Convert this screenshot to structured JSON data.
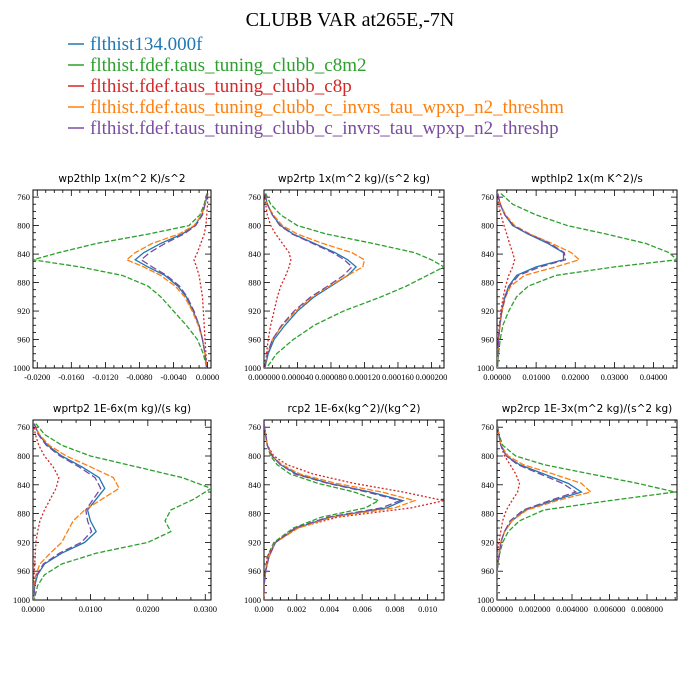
{
  "figure": {
    "title": "CLUBB VAR at265E,-7N"
  },
  "legend": [
    {
      "label": "flthist134.000f",
      "color": "#1f77b4"
    },
    {
      "label": "flthist.fdef.taus_tuning_clubb_c8m2",
      "color": "#2ca02c"
    },
    {
      "label": "flthist.fdef.taus_tuning_clubb_c8p",
      "color": "#d62728"
    },
    {
      "label": "flthist.fdef.taus_tuning_clubb_c_invrs_tau_wpxp_n2_threshm",
      "color": "#ff7f0e"
    },
    {
      "label": "flthist.fdef.taus_tuning_clubb_c_invrs_tau_wpxp_n2_threshp",
      "color": "#7a4ca0"
    }
  ],
  "chart_data": [
    {
      "type": "line",
      "title": "wp2thlp   1x(m^2 K)/s^2",
      "xlim": [
        -0.0205,
        0.0004
      ],
      "ylim": [
        1000,
        750
      ],
      "yticks": [
        760,
        800,
        840,
        880,
        920,
        960,
        1000
      ],
      "xticks": [
        -0.02,
        -0.016,
        -0.012,
        -0.008,
        -0.004,
        0
      ],
      "xtick_labels": [
        "-0.0200",
        "-0.0160",
        "-0.0120",
        "-0.0080",
        "-0.0040",
        "0.0000"
      ],
      "y": [
        755,
        770,
        785,
        800,
        812,
        825,
        838,
        848,
        858,
        870,
        885,
        900,
        920,
        940,
        960,
        980,
        1000
      ],
      "series": [
        {
          "values": [
            0.0,
            -0.0003,
            -0.0007,
            -0.0015,
            -0.003,
            -0.0055,
            -0.0075,
            -0.0085,
            -0.007,
            -0.005,
            -0.0035,
            -0.0025,
            -0.0017,
            -0.001,
            -0.0006,
            -0.0003,
            -0.0001
          ],
          "color": "#1f77b4",
          "dash": "solid"
        },
        {
          "values": [
            -0.0001,
            -0.0004,
            -0.0009,
            -0.0022,
            -0.007,
            -0.013,
            -0.0175,
            -0.0205,
            -0.015,
            -0.01,
            -0.007,
            -0.0055,
            -0.004,
            -0.0025,
            -0.0012,
            -0.0005,
            -0.0001
          ],
          "color": "#2ca02c",
          "dash": "5,2"
        },
        {
          "values": [
            0.0,
            0.0,
            -0.0001,
            -0.0002,
            -0.0004,
            -0.0008,
            -0.0012,
            -0.0016,
            -0.0013,
            -0.001,
            -0.0008,
            -0.0006,
            -0.0005,
            -0.0004,
            -0.0003,
            -0.0002,
            -0.0001
          ],
          "color": "#d62728",
          "dash": "2,2"
        },
        {
          "values": [
            0.0,
            -0.0003,
            -0.0007,
            -0.0016,
            -0.0034,
            -0.0065,
            -0.0085,
            -0.0095,
            -0.0075,
            -0.0055,
            -0.0038,
            -0.0027,
            -0.0018,
            -0.0011,
            -0.0006,
            -0.0003,
            -0.0001
          ],
          "color": "#ff7f0e",
          "dash": "6,2"
        },
        {
          "values": [
            0.0,
            -0.0003,
            -0.0006,
            -0.0014,
            -0.0028,
            -0.005,
            -0.0068,
            -0.0078,
            -0.0065,
            -0.0048,
            -0.0033,
            -0.0024,
            -0.0016,
            -0.001,
            -0.0006,
            -0.0003,
            -0.0001
          ],
          "color": "#7a4ca0",
          "dash": "7,3"
        }
      ]
    },
    {
      "type": "line",
      "title": "wp2rtp   1x(m^2 kg)/(s^2 kg)",
      "xlim": [
        0,
        0.000215
      ],
      "ylim": [
        1000,
        750
      ],
      "yticks": [
        760,
        800,
        840,
        880,
        920,
        960,
        1000
      ],
      "xticks": [
        0,
        4e-05,
        8e-05,
        0.00012,
        0.00016,
        0.0002
      ],
      "xtick_labels": [
        "0.000000",
        "0.000040",
        "0.000080",
        "0.000120",
        "0.000160",
        "0.000200"
      ],
      "y": [
        755,
        770,
        785,
        800,
        812,
        825,
        838,
        848,
        858,
        870,
        885,
        900,
        920,
        940,
        960,
        980,
        1000
      ],
      "series": [
        {
          "values": [
            1e-06,
            4e-06,
            1e-05,
            2e-05,
            3.5e-05,
            6e-05,
            8.5e-05,
            0.0001,
            0.00011,
            0.0001,
            8e-05,
            6e-05,
            4e-05,
            2.5e-05,
            1.2e-05,
            5e-06,
            1e-06
          ],
          "color": "#1f77b4",
          "dash": "solid"
        },
        {
          "values": [
            2e-06,
            8e-06,
            2e-05,
            4e-05,
            7.5e-05,
            0.00013,
            0.00018,
            0.0002,
            0.000215,
            0.000195,
            0.00017,
            0.00014,
            9.5e-05,
            6e-05,
            3.5e-05,
            1.5e-05,
            3e-06
          ],
          "color": "#2ca02c",
          "dash": "5,2"
        },
        {
          "values": [
            1e-06,
            2e-06,
            4e-06,
            8e-06,
            1.4e-05,
            2.2e-05,
            3e-05,
            3.2e-05,
            3e-05,
            2.6e-05,
            2e-05,
            1.6e-05,
            1.2e-05,
            8e-06,
            5e-06,
            3e-06,
            1e-06
          ],
          "color": "#d62728",
          "dash": "2,2"
        },
        {
          "values": [
            1e-06,
            4e-06,
            1.1e-05,
            2.2e-05,
            4e-05,
            7e-05,
            0.000105,
            0.00012,
            0.000118,
            0.0001,
            7.8e-05,
            5.8e-05,
            3.8e-05,
            2.2e-05,
            1e-05,
            4e-06,
            1e-06
          ],
          "color": "#ff7f0e",
          "dash": "6,2"
        },
        {
          "values": [
            1e-06,
            4e-06,
            1e-05,
            1.9e-05,
            3.4e-05,
            5.8e-05,
            8.2e-05,
            9.6e-05,
            0.000105,
            9.5e-05,
            7.6e-05,
            5.6e-05,
            3.6e-05,
            2.1e-05,
            1e-05,
            4e-06,
            1e-06
          ],
          "color": "#7a4ca0",
          "dash": "7,3"
        }
      ]
    },
    {
      "type": "line",
      "title": "wpthlp2   1x(m K^2)/s",
      "xlim": [
        0,
        0.046
      ],
      "ylim": [
        1000,
        750
      ],
      "yticks": [
        760,
        800,
        840,
        880,
        920,
        960,
        1000
      ],
      "xticks": [
        0,
        0.01,
        0.02,
        0.03,
        0.04
      ],
      "xtick_labels": [
        "0.00000",
        "0.01000",
        "0.02000",
        "0.03000",
        "0.04000"
      ],
      "y": [
        755,
        770,
        785,
        800,
        812,
        825,
        838,
        848,
        858,
        870,
        885,
        900,
        920,
        940,
        960,
        980,
        1000
      ],
      "series": [
        {
          "values": [
            0.0002,
            0.0008,
            0.002,
            0.004,
            0.008,
            0.013,
            0.017,
            0.017,
            0.01,
            0.005,
            0.003,
            0.002,
            0.0012,
            0.0007,
            0.0004,
            0.0002,
            0.0001
          ],
          "color": "#1f77b4",
          "dash": "solid"
        },
        {
          "values": [
            0.001,
            0.004,
            0.01,
            0.018,
            0.028,
            0.038,
            0.044,
            0.046,
            0.03,
            0.015,
            0.008,
            0.005,
            0.003,
            0.0015,
            0.0008,
            0.0004,
            0.0001
          ],
          "color": "#2ca02c",
          "dash": "5,2"
        },
        {
          "values": [
            0.0001,
            0.0004,
            0.001,
            0.0018,
            0.0025,
            0.0032,
            0.004,
            0.0045,
            0.004,
            0.003,
            0.0022,
            0.0016,
            0.001,
            0.0006,
            0.0003,
            0.0001,
            0.0
          ],
          "color": "#d62728",
          "dash": "2,2"
        },
        {
          "values": [
            0.0002,
            0.0009,
            0.0022,
            0.0045,
            0.0085,
            0.014,
            0.019,
            0.021,
            0.015,
            0.007,
            0.0035,
            0.0022,
            0.0013,
            0.0008,
            0.0004,
            0.0002,
            0.0001
          ],
          "color": "#ff7f0e",
          "dash": "6,2"
        },
        {
          "values": [
            0.0002,
            0.0008,
            0.002,
            0.0042,
            0.0082,
            0.0135,
            0.0172,
            0.0175,
            0.011,
            0.0055,
            0.0032,
            0.0021,
            0.0012,
            0.0007,
            0.0004,
            0.0002,
            0.0001
          ],
          "color": "#7a4ca0",
          "dash": "7,3"
        }
      ]
    },
    {
      "type": "line",
      "title": "wprtp2   1E-6x(m kg)/(s kg)",
      "xlim": [
        0,
        0.031
      ],
      "ylim": [
        1000,
        750
      ],
      "yticks": [
        760,
        800,
        840,
        880,
        920,
        960,
        1000
      ],
      "xticks": [
        0,
        0.01,
        0.02,
        0.03
      ],
      "xtick_labels": [
        "0.0000",
        "0.0100",
        "0.0200",
        "0.0300"
      ],
      "y": [
        755,
        770,
        785,
        800,
        815,
        830,
        845,
        860,
        875,
        890,
        905,
        920,
        935,
        950,
        965,
        980,
        1000
      ],
      "series": [
        {
          "values": [
            0.0002,
            0.001,
            0.0025,
            0.005,
            0.0085,
            0.0115,
            0.0125,
            0.011,
            0.0095,
            0.01,
            0.011,
            0.009,
            0.005,
            0.002,
            0.0008,
            0.0003,
            0.0001
          ],
          "color": "#1f77b4",
          "dash": "solid"
        },
        {
          "values": [
            0.0005,
            0.002,
            0.005,
            0.01,
            0.018,
            0.026,
            0.031,
            0.028,
            0.024,
            0.023,
            0.024,
            0.02,
            0.011,
            0.005,
            0.002,
            0.0008,
            0.0002
          ],
          "color": "#2ca02c",
          "dash": "5,2"
        },
        {
          "values": [
            0.0001,
            0.0004,
            0.001,
            0.002,
            0.0035,
            0.0045,
            0.004,
            0.003,
            0.002,
            0.0012,
            0.0008,
            0.0005,
            0.0004,
            0.0003,
            0.0002,
            0.0001,
            0.0
          ],
          "color": "#d62728",
          "dash": "2,2"
        },
        {
          "values": [
            0.0002,
            0.0011,
            0.0028,
            0.0058,
            0.01,
            0.014,
            0.015,
            0.012,
            0.009,
            0.007,
            0.006,
            0.005,
            0.003,
            0.0012,
            0.0005,
            0.0002,
            0.0001
          ],
          "color": "#ff7f0e",
          "dash": "6,2"
        },
        {
          "values": [
            0.0002,
            0.0009,
            0.0023,
            0.0047,
            0.008,
            0.0108,
            0.0118,
            0.0105,
            0.0092,
            0.0095,
            0.0102,
            0.0084,
            0.0046,
            0.0018,
            0.0007,
            0.0003,
            0.0001
          ],
          "color": "#7a4ca0",
          "dash": "7,3"
        }
      ]
    },
    {
      "type": "line",
      "title": "rcp2   1E-6x(kg^2)/(kg^2)",
      "xlim": [
        0,
        0.011
      ],
      "ylim": [
        1000,
        750
      ],
      "yticks": [
        760,
        800,
        840,
        880,
        920,
        960,
        1000
      ],
      "xticks": [
        0,
        0.002,
        0.004,
        0.006,
        0.008,
        0.01
      ],
      "xtick_labels": [
        "0.000",
        "0.002",
        "0.004",
        "0.006",
        "0.008",
        "0.010"
      ],
      "y": [
        755,
        770,
        785,
        800,
        812,
        825,
        838,
        850,
        862,
        872,
        885,
        900,
        920,
        940,
        960,
        980,
        1000
      ],
      "series": [
        {
          "values": [
            0.0,
            0.0001,
            0.0002,
            0.0005,
            0.001,
            0.002,
            0.004,
            0.0065,
            0.0085,
            0.0075,
            0.004,
            0.002,
            0.0007,
            0.0003,
            0.0001,
            0.0,
            0.0
          ],
          "color": "#1f77b4",
          "dash": "solid"
        },
        {
          "values": [
            0.0,
            0.0001,
            0.0002,
            0.0004,
            0.0008,
            0.0016,
            0.0033,
            0.0055,
            0.007,
            0.0062,
            0.0035,
            0.0018,
            0.0006,
            0.0002,
            0.0001,
            0.0,
            0.0
          ],
          "color": "#2ca02c",
          "dash": "5,2"
        },
        {
          "values": [
            0.0,
            0.0001,
            0.0002,
            0.0006,
            0.0014,
            0.003,
            0.0055,
            0.0085,
            0.011,
            0.009,
            0.0045,
            0.002,
            0.0007,
            0.0002,
            0.0001,
            0.0,
            0.0
          ],
          "color": "#d62728",
          "dash": "2,2"
        },
        {
          "values": [
            0.0,
            0.0001,
            0.0002,
            0.0005,
            0.0011,
            0.0022,
            0.0044,
            0.0072,
            0.0092,
            0.008,
            0.0042,
            0.0021,
            0.0007,
            0.0003,
            0.0001,
            0.0,
            0.0
          ],
          "color": "#ff7f0e",
          "dash": "6,2"
        },
        {
          "values": [
            0.0,
            0.0001,
            0.0002,
            0.0005,
            0.001,
            0.0019,
            0.0039,
            0.0063,
            0.0083,
            0.0072,
            0.0039,
            0.0019,
            0.0007,
            0.0003,
            0.0001,
            0.0,
            0.0
          ],
          "color": "#7a4ca0",
          "dash": "7,3"
        }
      ]
    },
    {
      "type": "line",
      "title": "wp2rcp   1E-3x(m^2 kg)/(s^2 kg)",
      "xlim": [
        0,
        0.0096
      ],
      "ylim": [
        1000,
        750
      ],
      "yticks": [
        760,
        800,
        840,
        880,
        920,
        960,
        1000
      ],
      "xticks": [
        0,
        0.002,
        0.004,
        0.006,
        0.008
      ],
      "xtick_labels": [
        "0.000000",
        "0.002000",
        "0.004000",
        "0.006000",
        "0.008000"
      ],
      "y": [
        755,
        770,
        785,
        800,
        812,
        825,
        838,
        850,
        862,
        875,
        890,
        905,
        920,
        940,
        960,
        980,
        1000
      ],
      "series": [
        {
          "values": [
            0.0,
            0.0001,
            0.0002,
            0.0005,
            0.0012,
            0.0025,
            0.0038,
            0.0045,
            0.003,
            0.0015,
            0.0008,
            0.0004,
            0.0002,
            0.0001,
            0.0,
            0.0,
            0.0
          ],
          "color": "#1f77b4",
          "dash": "solid"
        },
        {
          "values": [
            0.0,
            0.0001,
            0.0003,
            0.001,
            0.0025,
            0.005,
            0.0075,
            0.0095,
            0.006,
            0.0025,
            0.0012,
            0.0006,
            0.0003,
            0.0001,
            0.0,
            0.0,
            0.0
          ],
          "color": "#2ca02c",
          "dash": "5,2"
        },
        {
          "values": [
            0.0,
            0.0001,
            0.0002,
            0.0004,
            0.0007,
            0.001,
            0.0012,
            0.0011,
            0.0008,
            0.0005,
            0.0003,
            0.0002,
            0.0001,
            0.0,
            0.0,
            0.0,
            0.0
          ],
          "color": "#d62728",
          "dash": "2,2"
        },
        {
          "values": [
            0.0,
            0.0001,
            0.0002,
            0.0006,
            0.0014,
            0.003,
            0.0045,
            0.005,
            0.0032,
            0.0016,
            0.0008,
            0.0004,
            0.0002,
            0.0001,
            0.0,
            0.0,
            0.0
          ],
          "color": "#ff7f0e",
          "dash": "6,2"
        },
        {
          "values": [
            0.0,
            0.0001,
            0.0002,
            0.0005,
            0.0011,
            0.0023,
            0.0035,
            0.0042,
            0.0028,
            0.0014,
            0.0007,
            0.0004,
            0.0002,
            0.0001,
            0.0,
            0.0,
            0.0
          ],
          "color": "#7a4ca0",
          "dash": "7,3"
        }
      ]
    }
  ]
}
